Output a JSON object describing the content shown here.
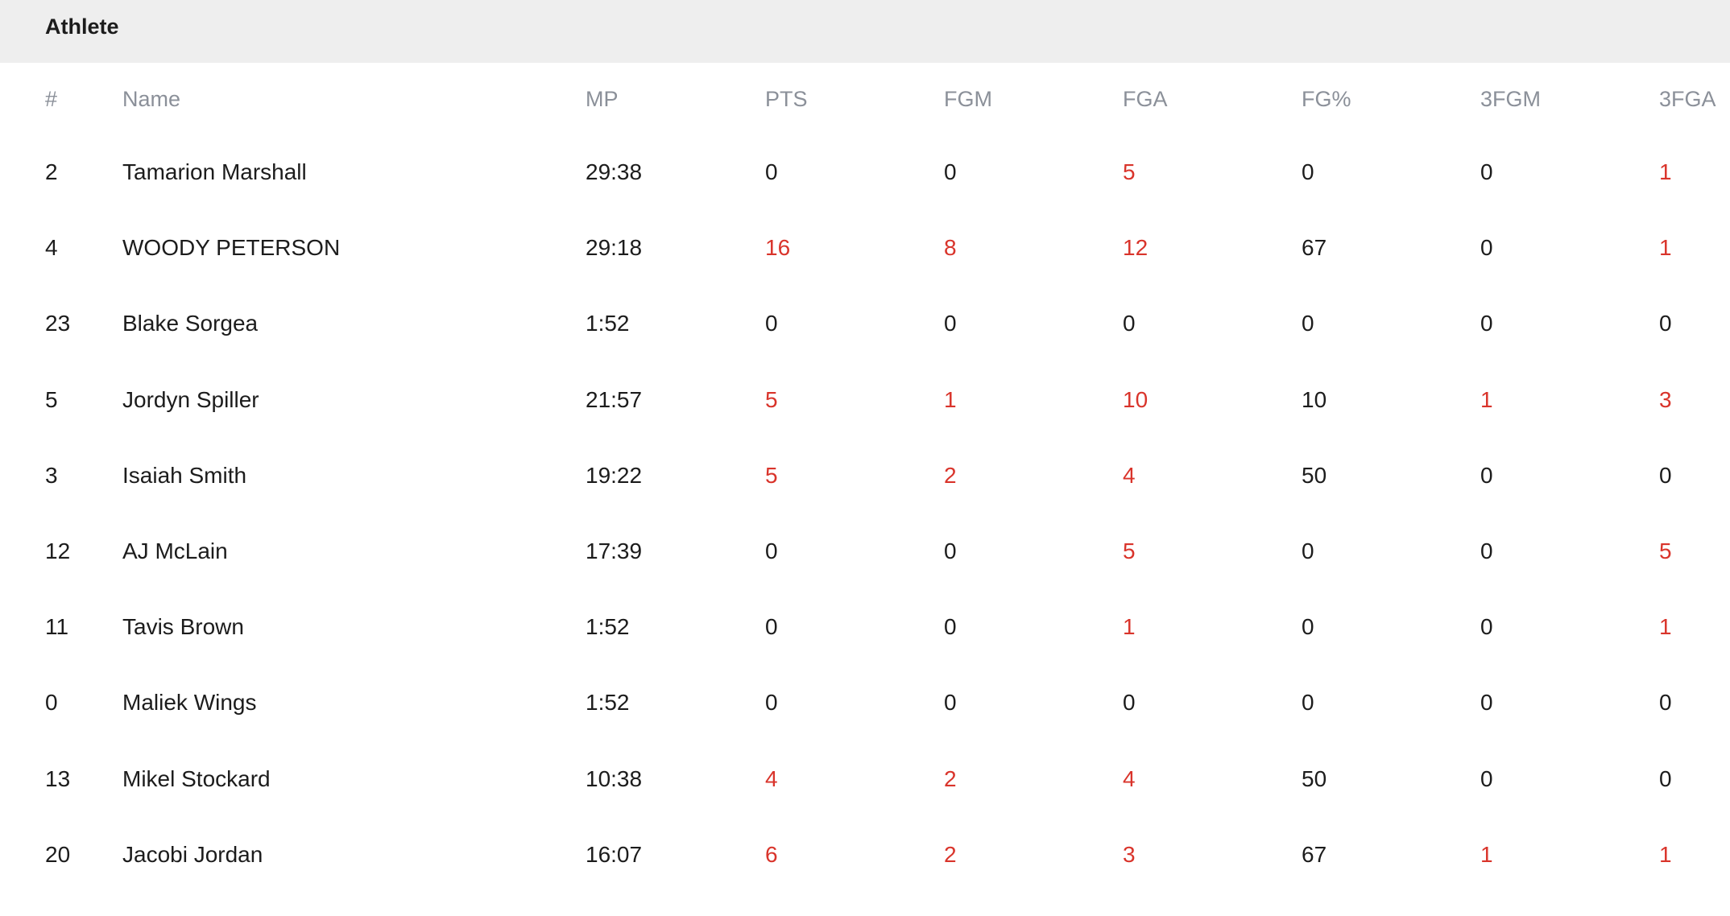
{
  "section": {
    "title": "Athlete"
  },
  "colors": {
    "highlight": "#d9342b",
    "text": "#1c1c1c",
    "header_text": "#8b9099",
    "band": "#eeeeee"
  },
  "table": {
    "columns": [
      "#",
      "Name",
      "MP",
      "PTS",
      "FGM",
      "FGA",
      "FG%",
      "3FGM",
      "3FGA"
    ],
    "highlight_nonzero_columns": [
      "PTS",
      "FGM",
      "FGA",
      "3FGM",
      "3FGA"
    ],
    "rows": [
      [
        "2",
        "Tamarion Marshall",
        "29:38",
        "0",
        "0",
        "5",
        "0",
        "0",
        "1"
      ],
      [
        "4",
        "WOODY PETERSON",
        "29:18",
        "16",
        "8",
        "12",
        "67",
        "0",
        "1"
      ],
      [
        "23",
        "Blake Sorgea",
        "1:52",
        "0",
        "0",
        "0",
        "0",
        "0",
        "0"
      ],
      [
        "5",
        "Jordyn Spiller",
        "21:57",
        "5",
        "1",
        "10",
        "10",
        "1",
        "3"
      ],
      [
        "3",
        "Isaiah Smith",
        "19:22",
        "5",
        "2",
        "4",
        "50",
        "0",
        "0"
      ],
      [
        "12",
        "AJ McLain",
        "17:39",
        "0",
        "0",
        "5",
        "0",
        "0",
        "5"
      ],
      [
        "11",
        "Tavis Brown",
        "1:52",
        "0",
        "0",
        "1",
        "0",
        "0",
        "1"
      ],
      [
        "0",
        "Maliek Wings",
        "1:52",
        "0",
        "0",
        "0",
        "0",
        "0",
        "0"
      ],
      [
        "13",
        "Mikel Stockard",
        "10:38",
        "4",
        "2",
        "4",
        "50",
        "0",
        "0"
      ],
      [
        "20",
        "Jacobi Jordan",
        "16:07",
        "6",
        "2",
        "3",
        "67",
        "1",
        "1"
      ]
    ]
  }
}
